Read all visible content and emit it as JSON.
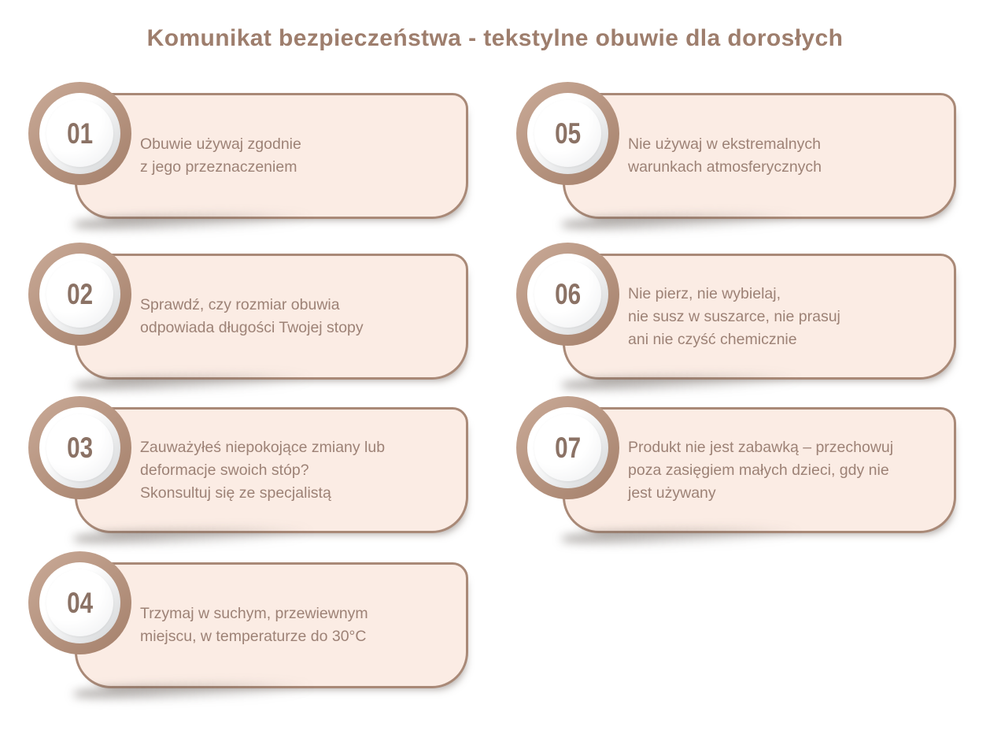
{
  "title": "Komunikat bezpieczeństwa - tekstylne obuwie dla dorosłych",
  "colors": {
    "title_text": "#9e7e6d",
    "card_background": "#fbece4",
    "card_border": "#a98977",
    "badge_ring": "#b5917e",
    "badge_number": "#8b7265",
    "body_text": "#9d8276",
    "page_background": "#ffffff"
  },
  "items": [
    {
      "number": "01",
      "text": "Obuwie używaj zgodnie\nz jego przeznaczeniem"
    },
    {
      "number": "02",
      "text": "Sprawdź, czy rozmiar obuwia\nodpowiada długości Twojej stopy"
    },
    {
      "number": "03",
      "text": "Zauważyłeś niepokojące zmiany lub\ndeformacje swoich stóp?\nSkonsultuj się ze specjalistą"
    },
    {
      "number": "04",
      "text": "Trzymaj w suchym, przewiewnym\nmiejscu, w temperaturze do 30°C"
    },
    {
      "number": "05",
      "text": "Nie używaj w ekstremalnych\nwarunkach atmosferycznych"
    },
    {
      "number": "06",
      "text": "Nie pierz, nie wybielaj,\nnie susz w suszarce, nie prasuj\nani nie czyść chemicznie"
    },
    {
      "number": "07",
      "text": "Produkt nie jest zabawką – przechowuj\npoza zasięgiem małych dzieci, gdy nie\njest używany"
    }
  ]
}
